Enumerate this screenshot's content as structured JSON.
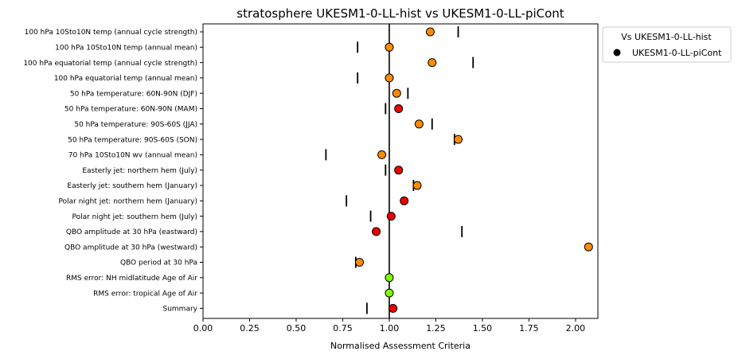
{
  "chart_data": {
    "type": "scatter",
    "title": "stratosphere UKESM1-0-LL-hist vs UKESM1-0-LL-piCont",
    "xlabel": "Normalised Assessment Criteria",
    "xlim": [
      0.0,
      2.12
    ],
    "xticks": [
      "0.00",
      "0.25",
      "0.50",
      "0.75",
      "1.00",
      "1.25",
      "1.50",
      "1.75",
      "2.00"
    ],
    "reference_x": 1.0,
    "legend": {
      "title": "Vs UKESM1-0-LL-hist",
      "entry": "UKESM1-0-LL-piCont",
      "placement": "outside-top-right"
    },
    "colors": {
      "orange": "#ff8c00",
      "red": "#ee0000",
      "green": "#7fff00"
    },
    "metrics": [
      {
        "label": "100 hPa 10Sto10N temp (annual cycle strength)",
        "value": 1.22,
        "marker": 1.37,
        "color": "orange"
      },
      {
        "label": "100 hPa 10Sto10N temp (annual mean)",
        "value": 1.0,
        "marker": 0.83,
        "color": "orange"
      },
      {
        "label": "100 hPa equatorial temp (annual cycle strength)",
        "value": 1.23,
        "marker": 1.45,
        "color": "orange"
      },
      {
        "label": "100 hPa equatorial temp (annual mean)",
        "value": 1.0,
        "marker": 0.83,
        "color": "orange"
      },
      {
        "label": "50 hPa temperature: 60N-90N (DJF)",
        "value": 1.04,
        "marker": 1.1,
        "color": "orange"
      },
      {
        "label": "50 hPa temperature: 60N-90N (MAM)",
        "value": 1.05,
        "marker": 0.98,
        "color": "red"
      },
      {
        "label": "50 hPa temperature: 90S-60S (JJA)",
        "value": 1.16,
        "marker": 1.23,
        "color": "orange"
      },
      {
        "label": "50 hPa temperature: 90S-60S (SON)",
        "value": 1.37,
        "marker": 1.35,
        "color": "orange"
      },
      {
        "label": "70 hPa 10Sto10N wv (annual mean)",
        "value": 0.96,
        "marker": 0.66,
        "color": "orange"
      },
      {
        "label": "Easterly jet: northern hem (July)",
        "value": 1.05,
        "marker": 0.98,
        "color": "red"
      },
      {
        "label": "Easterly jet: southern hem (January)",
        "value": 1.15,
        "marker": 1.13,
        "color": "orange"
      },
      {
        "label": "Polar night jet: northern hem (January)",
        "value": 1.08,
        "marker": 0.77,
        "color": "red"
      },
      {
        "label": "Polar night jet: southern hem (July)",
        "value": 1.01,
        "marker": 0.9,
        "color": "red"
      },
      {
        "label": "QBO amplitude at 30 hPa (eastward)",
        "value": 0.93,
        "marker": 1.39,
        "color": "red"
      },
      {
        "label": "QBO amplitude at 30 hPa (westward)",
        "value": 2.07,
        "marker": null,
        "color": "orange"
      },
      {
        "label": "QBO period at 30 hPa",
        "value": 0.84,
        "marker": 0.82,
        "color": "orange"
      },
      {
        "label": "RMS error: NH midlatitude Age of Air",
        "value": 1.0,
        "marker": null,
        "color": "green"
      },
      {
        "label": "RMS error: tropical Age of Air",
        "value": 1.0,
        "marker": null,
        "color": "green"
      },
      {
        "label": "Summary",
        "value": 1.02,
        "marker": 0.88,
        "color": "red"
      }
    ]
  }
}
